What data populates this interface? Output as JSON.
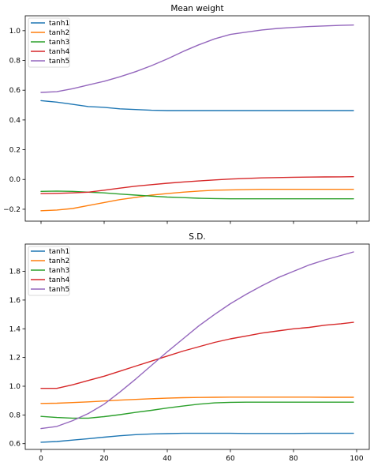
{
  "chart_data": [
    {
      "type": "line",
      "title": "Mean weight",
      "xlabel": "",
      "ylabel": "",
      "xlim": [
        -5,
        104
      ],
      "ylim": [
        -0.28,
        1.1
      ],
      "grid": false,
      "legend_placement": "top-left",
      "x_ticks": [
        0,
        20,
        40,
        60,
        80,
        100
      ],
      "x_tick_labels": [
        "",
        "",
        "",
        "",
        "",
        ""
      ],
      "y_ticks": [
        -0.2,
        0.0,
        0.2,
        0.4,
        0.6,
        0.8,
        1.0
      ],
      "y_tick_labels": [
        "−0.2",
        "0.0",
        "0.2",
        "0.4",
        "0.6",
        "0.8",
        "1.0"
      ],
      "x": [
        0,
        5,
        10,
        15,
        20,
        25,
        30,
        35,
        40,
        45,
        50,
        55,
        60,
        65,
        70,
        75,
        80,
        85,
        90,
        95,
        99
      ],
      "series": [
        {
          "name": "tanh1",
          "color": "#1f77b4",
          "values": [
            0.53,
            0.52,
            0.505,
            0.49,
            0.485,
            0.475,
            0.47,
            0.465,
            0.463,
            0.463,
            0.463,
            0.463,
            0.463,
            0.463,
            0.463,
            0.463,
            0.463,
            0.463,
            0.463,
            0.463,
            0.463
          ]
        },
        {
          "name": "tanh2",
          "color": "#ff7f0e",
          "values": [
            -0.21,
            -0.205,
            -0.195,
            -0.175,
            -0.155,
            -0.135,
            -0.12,
            -0.105,
            -0.095,
            -0.085,
            -0.078,
            -0.072,
            -0.07,
            -0.068,
            -0.066,
            -0.066,
            -0.066,
            -0.066,
            -0.066,
            -0.066,
            -0.066
          ]
        },
        {
          "name": "tanh3",
          "color": "#2ca02c",
          "values": [
            -0.08,
            -0.078,
            -0.08,
            -0.085,
            -0.09,
            -0.098,
            -0.105,
            -0.112,
            -0.118,
            -0.122,
            -0.126,
            -0.128,
            -0.13,
            -0.13,
            -0.13,
            -0.13,
            -0.13,
            -0.13,
            -0.13,
            -0.13,
            -0.13
          ]
        },
        {
          "name": "tanh4",
          "color": "#d62728",
          "values": [
            -0.095,
            -0.093,
            -0.09,
            -0.085,
            -0.072,
            -0.058,
            -0.045,
            -0.035,
            -0.025,
            -0.017,
            -0.01,
            -0.003,
            0.003,
            0.007,
            0.011,
            0.013,
            0.015,
            0.016,
            0.017,
            0.018,
            0.019
          ]
        },
        {
          "name": "tanh5",
          "color": "#9467bd",
          "values": [
            0.585,
            0.59,
            0.61,
            0.635,
            0.66,
            0.69,
            0.725,
            0.765,
            0.81,
            0.86,
            0.905,
            0.945,
            0.975,
            0.99,
            1.005,
            1.015,
            1.022,
            1.028,
            1.032,
            1.036,
            1.038
          ]
        }
      ]
    },
    {
      "type": "line",
      "title": "S.D.",
      "xlabel": "",
      "ylabel": "",
      "xlim": [
        -5,
        104
      ],
      "ylim": [
        0.56,
        1.99
      ],
      "grid": false,
      "legend_placement": "top-left",
      "x_ticks": [
        0,
        20,
        40,
        60,
        80,
        100
      ],
      "x_tick_labels": [
        "0",
        "20",
        "40",
        "60",
        "80",
        "100"
      ],
      "y_ticks": [
        0.6,
        0.8,
        1.0,
        1.2,
        1.4,
        1.6,
        1.8
      ],
      "y_tick_labels": [
        "0.6",
        "0.8",
        "1.0",
        "1.2",
        "1.4",
        "1.6",
        "1.8"
      ],
      "x": [
        0,
        5,
        10,
        15,
        20,
        25,
        30,
        35,
        40,
        45,
        50,
        55,
        60,
        65,
        70,
        75,
        80,
        85,
        90,
        95,
        99
      ],
      "series": [
        {
          "name": "tanh1",
          "color": "#1f77b4",
          "values": [
            0.61,
            0.615,
            0.625,
            0.635,
            0.645,
            0.655,
            0.663,
            0.668,
            0.67,
            0.672,
            0.672,
            0.672,
            0.672,
            0.671,
            0.671,
            0.671,
            0.671,
            0.672,
            0.672,
            0.672,
            0.672
          ]
        },
        {
          "name": "tanh2",
          "color": "#ff7f0e",
          "values": [
            0.88,
            0.882,
            0.886,
            0.891,
            0.897,
            0.903,
            0.908,
            0.913,
            0.917,
            0.92,
            0.922,
            0.923,
            0.924,
            0.924,
            0.924,
            0.924,
            0.924,
            0.924,
            0.923,
            0.923,
            0.923
          ]
        },
        {
          "name": "tanh3",
          "color": "#2ca02c",
          "values": [
            0.79,
            0.782,
            0.778,
            0.778,
            0.788,
            0.802,
            0.818,
            0.832,
            0.848,
            0.862,
            0.875,
            0.884,
            0.888,
            0.889,
            0.889,
            0.889,
            0.889,
            0.889,
            0.889,
            0.889,
            0.889
          ]
        },
        {
          "name": "tanh4",
          "color": "#d62728",
          "values": [
            0.985,
            0.985,
            1.01,
            1.04,
            1.07,
            1.105,
            1.14,
            1.175,
            1.21,
            1.245,
            1.275,
            1.305,
            1.33,
            1.35,
            1.37,
            1.385,
            1.4,
            1.41,
            1.425,
            1.435,
            1.445
          ]
        },
        {
          "name": "tanh5",
          "color": "#9467bd",
          "values": [
            0.705,
            0.72,
            0.76,
            0.81,
            0.875,
            0.96,
            1.05,
            1.145,
            1.24,
            1.33,
            1.42,
            1.5,
            1.575,
            1.64,
            1.7,
            1.755,
            1.8,
            1.845,
            1.88,
            1.91,
            1.935
          ]
        }
      ]
    }
  ]
}
